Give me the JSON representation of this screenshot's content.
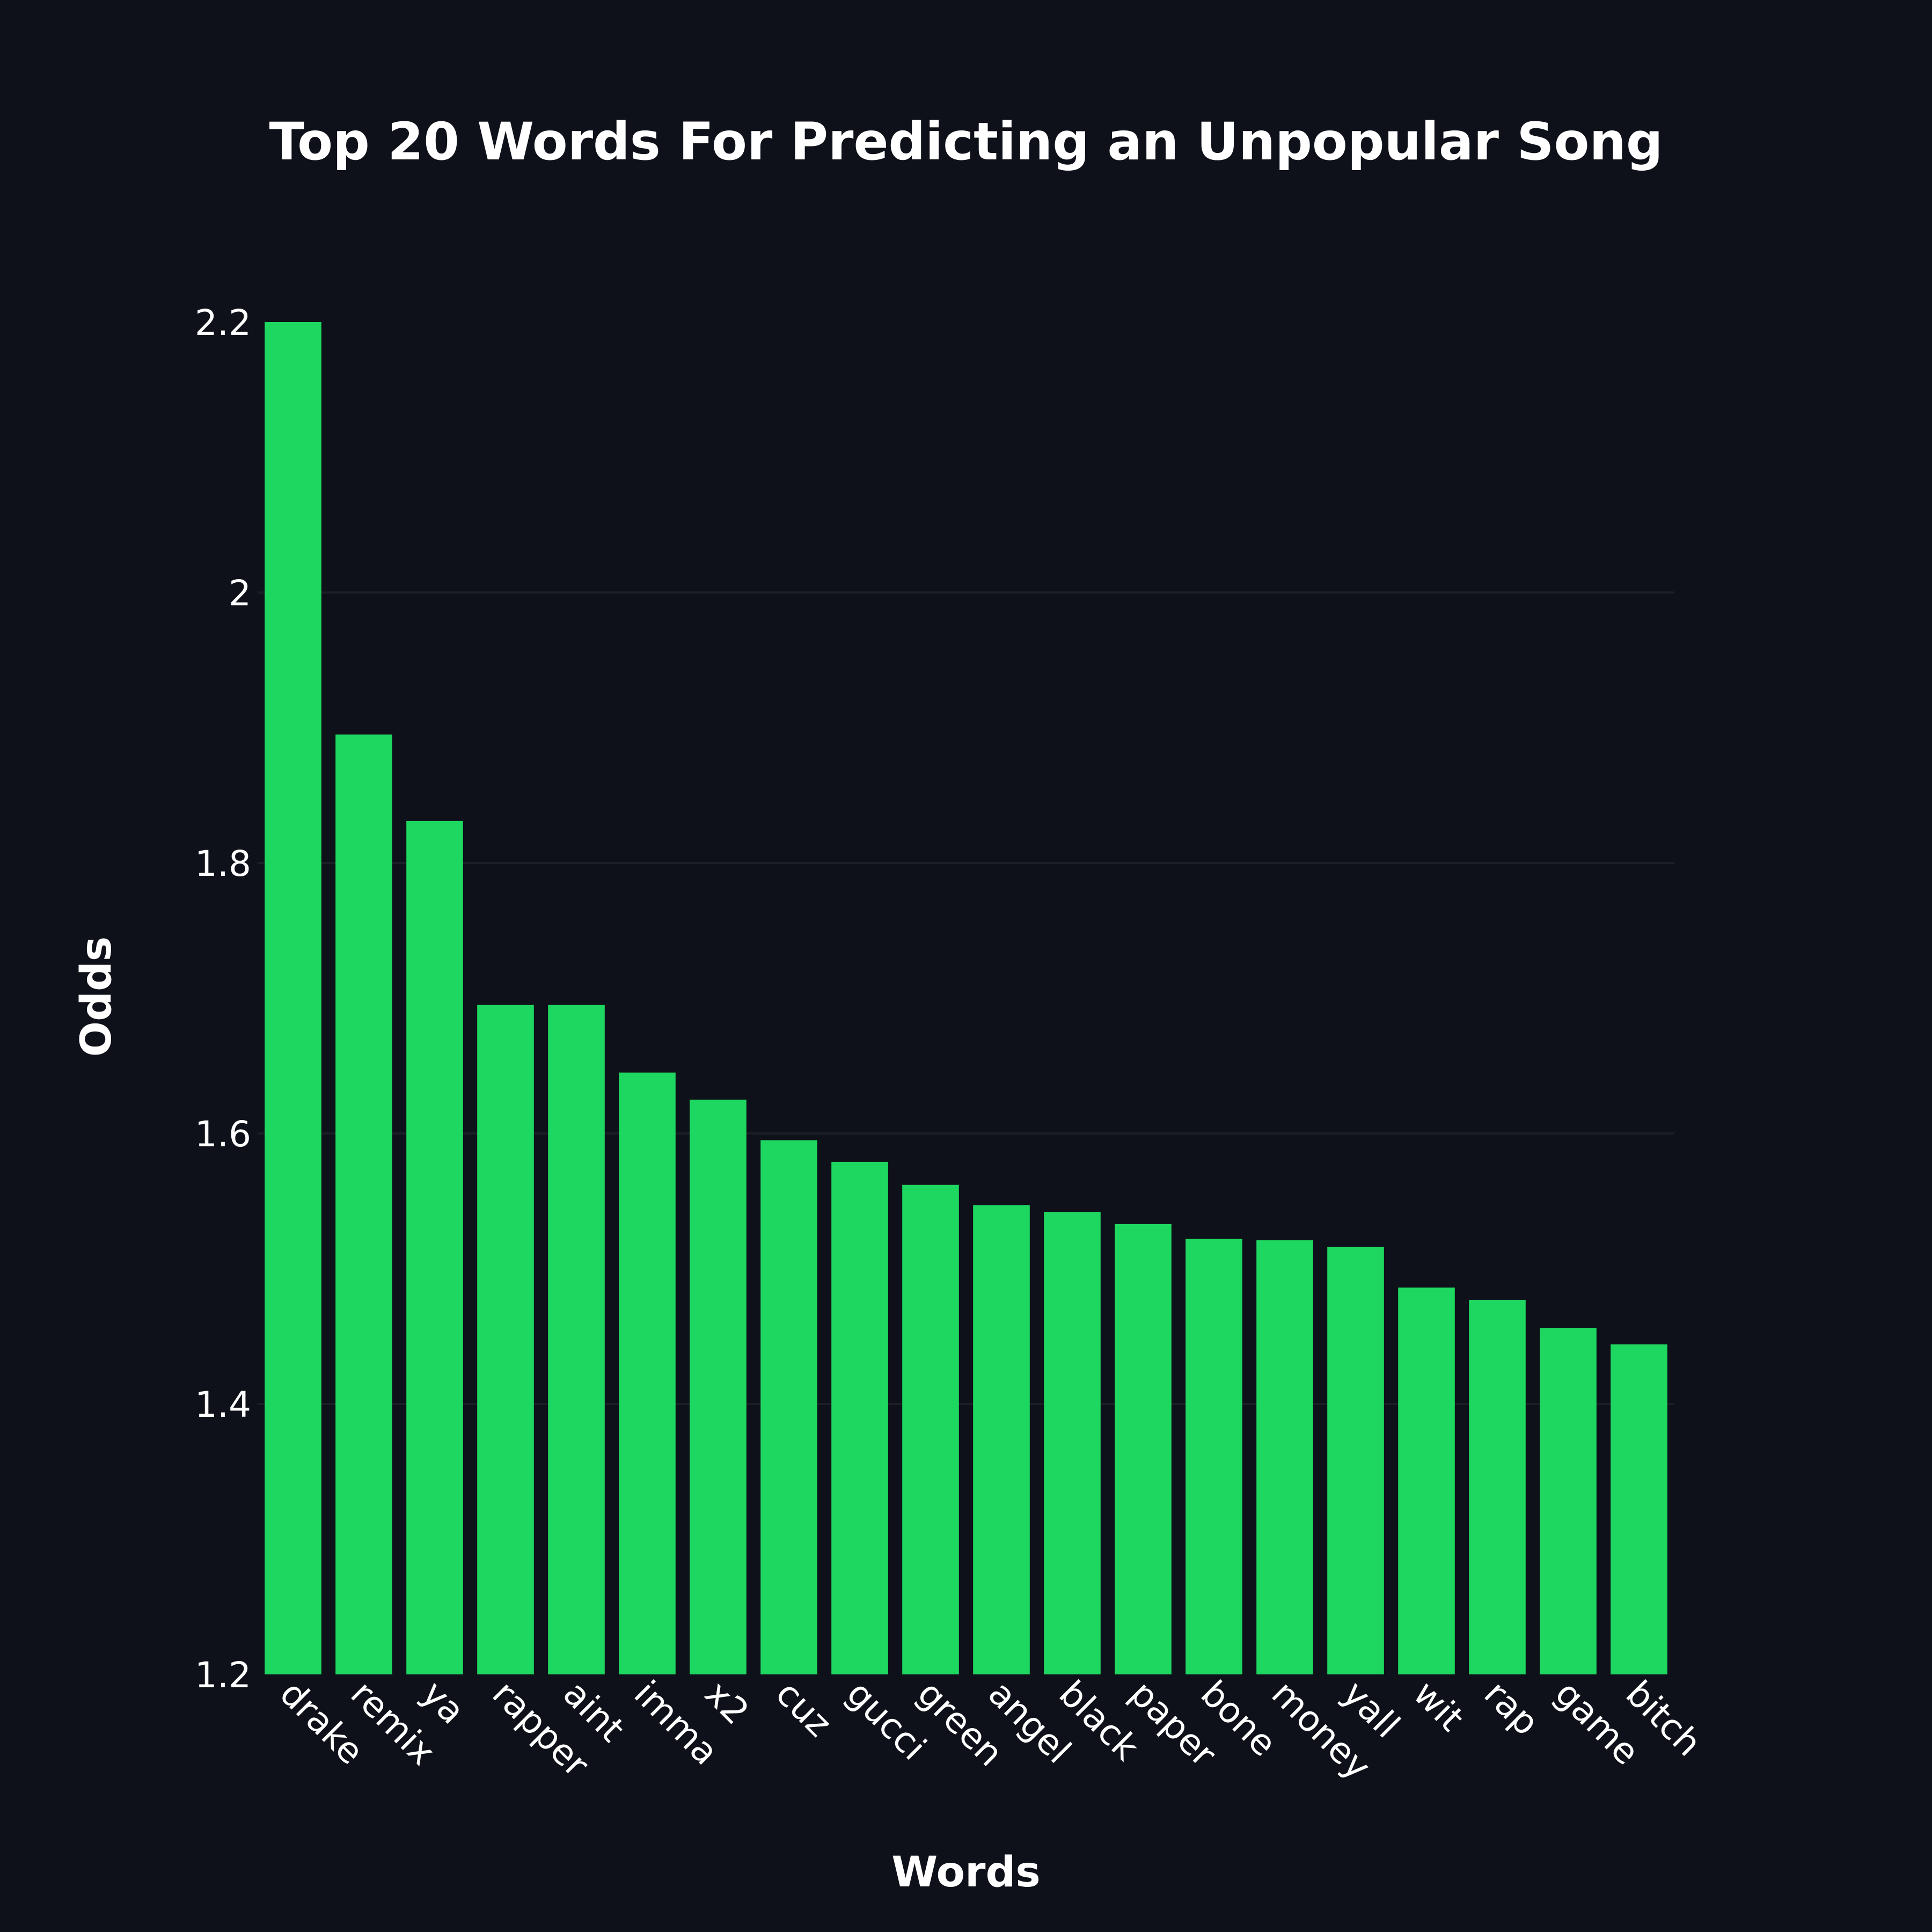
{
  "chart_data": {
    "type": "bar",
    "title": "Top 20 Words For Predicting an Unpopular Song",
    "xlabel": "Words",
    "ylabel": "Odds",
    "categories": [
      "drake",
      "remix",
      "ya",
      "rapper",
      "aint",
      "imma",
      "x2",
      "cuz",
      "gucci",
      "green",
      "angel",
      "black",
      "paper",
      "bone",
      "money",
      "yall",
      "wit",
      "rap",
      "game",
      "bitch"
    ],
    "values": [
      2.2,
      1.895,
      1.831,
      1.695,
      1.695,
      1.645,
      1.625,
      1.595,
      1.579,
      1.562,
      1.547,
      1.542,
      1.533,
      1.522,
      1.521,
      1.516,
      1.486,
      1.477,
      1.456,
      1.444
    ],
    "ylim": [
      1.2,
      2.2
    ],
    "yticks": [
      1.2,
      1.4,
      1.6,
      1.8,
      2.0,
      2.2
    ],
    "ytick_labels": [
      "1.2",
      "1.4",
      "1.6",
      "1.8",
      "2",
      "2.2"
    ],
    "grid": true,
    "bar_color": "#1ed760",
    "background_color": "#0e1119",
    "text_color": "#ffffff"
  }
}
